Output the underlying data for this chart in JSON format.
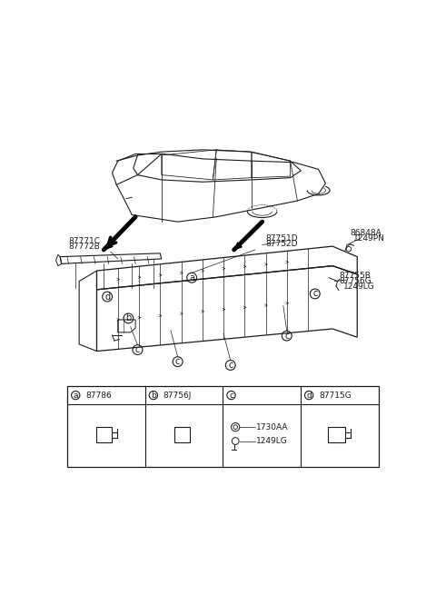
{
  "bg_color": "#ffffff",
  "line_color": "#1a1a1a",
  "figsize": [
    4.8,
    6.55
  ],
  "dpi": 100,
  "labels": {
    "top_right_1": "87751D",
    "top_right_2": "87752D",
    "screw_top_label": "86848A",
    "screw_top_num": "1249PN",
    "left_labels_1": "87771C",
    "left_labels_2": "87772B",
    "right_mid_1": "87755B",
    "right_mid_2": "87756G",
    "right_mid_num": "1249LG",
    "legend_a_num": "87786",
    "legend_b_num": "87756J",
    "legend_c_num1": "1730AA",
    "legend_c_num2": "1249LG",
    "legend_d_num": "87715G"
  }
}
